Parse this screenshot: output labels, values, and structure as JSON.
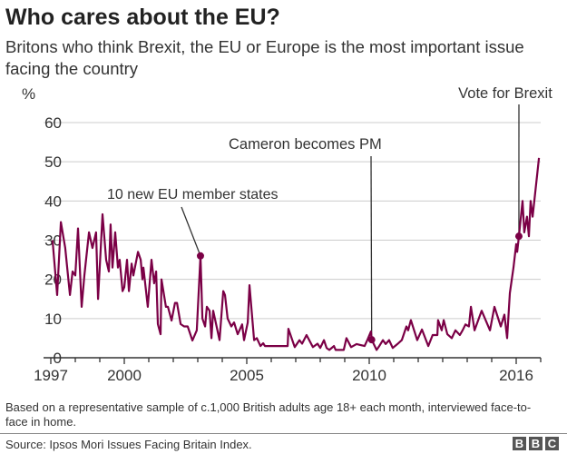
{
  "title": "Who cares about the EU?",
  "subtitle": "Britons who think Brexit, the EU or Europe is the most important issue facing the country",
  "note": "Based on a representative sample of c.1,000 British adults age 18+ each month, interviewed face-to-face in home.",
  "source": "Source: Ipsos Mori Issues Facing Britain Index.",
  "logo": [
    "B",
    "B",
    "C"
  ],
  "colors": {
    "line": "#7b0046",
    "grid": "#cccccc",
    "annotation": "#333333"
  },
  "chart_data": {
    "type": "line",
    "title": "Who cares about the EU?",
    "ylabel": "%",
    "ylim": [
      0,
      60
    ],
    "yticks": [
      0,
      10,
      20,
      30,
      40,
      50,
      60
    ],
    "xticks": [
      1997,
      2000,
      2005,
      2010,
      2016
    ],
    "grid": true,
    "annotations": [
      {
        "label": "10 new EU member states",
        "x": 2003.11,
        "y": 26
      },
      {
        "label": "Cameron becomes PM",
        "x": 2010.1,
        "y": 4.6
      },
      {
        "label": "Vote for Brexit",
        "x": 2016.11,
        "y": 31
      }
    ],
    "series": [
      {
        "points": [
          [
            1997.07,
            30
          ],
          [
            1997.26,
            16
          ],
          [
            1997.41,
            34.6
          ],
          [
            1997.59,
            28
          ],
          [
            1997.78,
            16
          ],
          [
            1997.89,
            22
          ],
          [
            1998.0,
            21
          ],
          [
            1998.11,
            33
          ],
          [
            1998.26,
            13
          ],
          [
            1998.37,
            21
          ],
          [
            1998.56,
            32
          ],
          [
            1998.7,
            28
          ],
          [
            1998.85,
            32
          ],
          [
            1998.93,
            15
          ],
          [
            1999.11,
            36.6
          ],
          [
            1999.26,
            25
          ],
          [
            1999.37,
            22
          ],
          [
            1999.44,
            34
          ],
          [
            1999.52,
            23
          ],
          [
            1999.63,
            32
          ],
          [
            1999.74,
            23
          ],
          [
            1999.81,
            25
          ],
          [
            1999.93,
            17
          ],
          [
            2000.0,
            18
          ],
          [
            2000.11,
            25
          ],
          [
            2000.19,
            17
          ],
          [
            2000.3,
            24
          ],
          [
            2000.37,
            21
          ],
          [
            2000.56,
            27
          ],
          [
            2000.67,
            25
          ],
          [
            2000.74,
            20
          ],
          [
            2000.78,
            23
          ],
          [
            2000.96,
            13
          ],
          [
            2001.11,
            25
          ],
          [
            2001.22,
            19
          ],
          [
            2001.3,
            22
          ],
          [
            2001.37,
            8.6
          ],
          [
            2001.48,
            6
          ],
          [
            2001.52,
            20
          ],
          [
            2001.7,
            13
          ],
          [
            2001.78,
            13
          ],
          [
            2001.93,
            9.5
          ],
          [
            2002.07,
            14
          ],
          [
            2002.15,
            14
          ],
          [
            2002.3,
            8.6
          ],
          [
            2002.44,
            8
          ],
          [
            2002.59,
            8
          ],
          [
            2002.78,
            4.4
          ],
          [
            2002.96,
            7
          ],
          [
            2003.11,
            26
          ],
          [
            2003.19,
            10
          ],
          [
            2003.3,
            8
          ],
          [
            2003.37,
            13
          ],
          [
            2003.48,
            12
          ],
          [
            2003.56,
            5
          ],
          [
            2003.63,
            12
          ],
          [
            2003.89,
            4.5
          ],
          [
            2004.04,
            17
          ],
          [
            2004.11,
            16
          ],
          [
            2004.22,
            10
          ],
          [
            2004.37,
            8
          ],
          [
            2004.48,
            9
          ],
          [
            2004.63,
            6
          ],
          [
            2004.81,
            8.5
          ],
          [
            2004.89,
            4.5
          ],
          [
            2005.04,
            9
          ],
          [
            2005.11,
            18.5
          ],
          [
            2005.3,
            4.5
          ],
          [
            2005.41,
            5
          ],
          [
            2005.56,
            3
          ],
          [
            2005.67,
            3.7
          ],
          [
            2005.74,
            3
          ],
          [
            2006.04,
            3
          ],
          [
            2006.67,
            3
          ],
          [
            2006.7,
            7.4
          ],
          [
            2006.96,
            2.7
          ],
          [
            2007.15,
            4.5
          ],
          [
            2007.26,
            3.6
          ],
          [
            2007.44,
            5.8
          ],
          [
            2007.7,
            2.7
          ],
          [
            2007.89,
            3.6
          ],
          [
            2008.0,
            2.5
          ],
          [
            2008.15,
            4.5
          ],
          [
            2008.26,
            2.5
          ],
          [
            2008.37,
            2
          ],
          [
            2008.56,
            3
          ],
          [
            2008.63,
            2
          ],
          [
            2008.96,
            2
          ],
          [
            2009.07,
            5
          ],
          [
            2009.26,
            2.7
          ],
          [
            2009.48,
            3.5
          ],
          [
            2009.81,
            3
          ],
          [
            2009.93,
            4.6
          ],
          [
            2010.07,
            6.7
          ],
          [
            2010.1,
            4.6
          ],
          [
            2010.3,
            2
          ],
          [
            2010.41,
            3
          ],
          [
            2010.56,
            4.5
          ],
          [
            2010.67,
            3.5
          ],
          [
            2010.81,
            4.5
          ],
          [
            2010.96,
            2.5
          ],
          [
            2011.15,
            3.5
          ],
          [
            2011.33,
            4.5
          ],
          [
            2011.52,
            8
          ],
          [
            2011.59,
            7
          ],
          [
            2011.7,
            9.6
          ],
          [
            2011.96,
            4.5
          ],
          [
            2012.15,
            7.2
          ],
          [
            2012.41,
            3
          ],
          [
            2012.59,
            5.8
          ],
          [
            2012.78,
            5.8
          ],
          [
            2012.81,
            9.6
          ],
          [
            2012.96,
            7
          ],
          [
            2013.04,
            9.6
          ],
          [
            2013.19,
            6
          ],
          [
            2013.37,
            5
          ],
          [
            2013.52,
            7
          ],
          [
            2013.7,
            5.8
          ],
          [
            2013.81,
            7
          ],
          [
            2013.93,
            8.5
          ],
          [
            2014.07,
            8
          ],
          [
            2014.15,
            13
          ],
          [
            2014.3,
            7
          ],
          [
            2014.59,
            12
          ],
          [
            2014.93,
            7
          ],
          [
            2015.11,
            13
          ],
          [
            2015.37,
            8
          ],
          [
            2015.52,
            11
          ],
          [
            2015.63,
            5
          ],
          [
            2015.74,
            16.5
          ],
          [
            2015.89,
            23
          ],
          [
            2016.0,
            29
          ],
          [
            2016.04,
            27
          ],
          [
            2016.11,
            31
          ],
          [
            2016.26,
            40
          ],
          [
            2016.33,
            32
          ],
          [
            2016.44,
            36
          ],
          [
            2016.52,
            31
          ],
          [
            2016.59,
            40
          ],
          [
            2016.67,
            36
          ],
          [
            2016.93,
            51
          ]
        ]
      }
    ]
  }
}
